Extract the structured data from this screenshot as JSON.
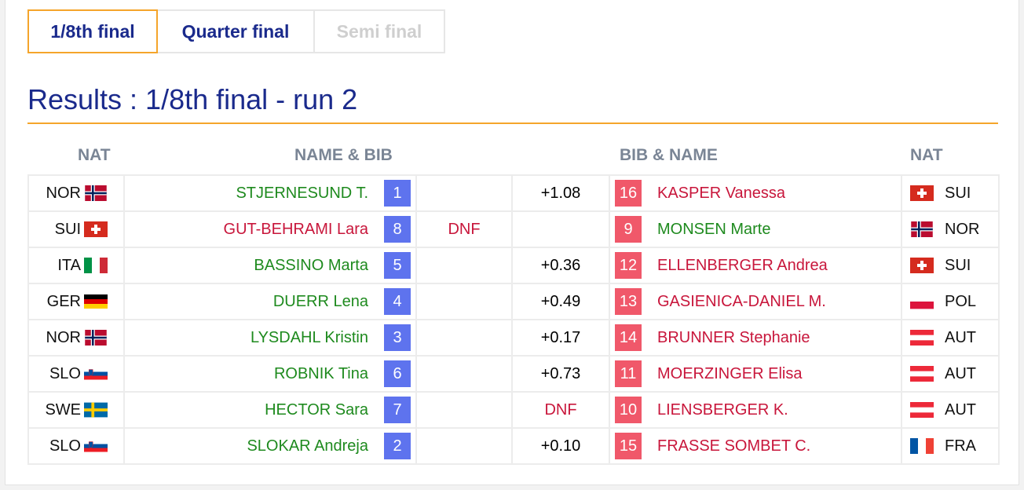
{
  "tabs": [
    {
      "label": "1/8th final",
      "state": "active"
    },
    {
      "label": "Quarter final",
      "state": "enabled"
    },
    {
      "label": "Semi final",
      "state": "disabled"
    }
  ],
  "title": "Results : 1/8th final - run 2",
  "headers": {
    "nat_left": "NAT",
    "name_bib": "NAME & BIB",
    "bib_name": "BIB & NAME",
    "nat_right": "NAT"
  },
  "colors": {
    "accent": "#f5a52b",
    "title": "#1a2a8c",
    "bib_left": "#5e73ee",
    "bib_right": "#f0586a",
    "winner": "#1e8a1e",
    "loser": "#c8163b"
  },
  "rows": [
    {
      "left": {
        "nat": "NOR",
        "flag": "flag-nor-icon",
        "name": "STJERNESUND T.",
        "bib": "1",
        "status": "win",
        "result": ""
      },
      "right": {
        "result": "+1.08",
        "bib": "16",
        "name": "KASPER Vanessa",
        "flag": "flag-sui-icon",
        "nat": "SUI",
        "status": "lose"
      }
    },
    {
      "left": {
        "nat": "SUI",
        "flag": "flag-sui-icon",
        "name": "GUT-BEHRAMI Lara",
        "bib": "8",
        "status": "lose",
        "result": "DNF"
      },
      "right": {
        "result": "",
        "bib": "9",
        "name": "MONSEN Marte",
        "flag": "flag-nor-icon",
        "nat": "NOR",
        "status": "win"
      }
    },
    {
      "left": {
        "nat": "ITA",
        "flag": "flag-ita-icon",
        "name": "BASSINO Marta",
        "bib": "5",
        "status": "win",
        "result": ""
      },
      "right": {
        "result": "+0.36",
        "bib": "12",
        "name": "ELLENBERGER Andrea",
        "flag": "flag-sui-icon",
        "nat": "SUI",
        "status": "lose"
      }
    },
    {
      "left": {
        "nat": "GER",
        "flag": "flag-ger-icon",
        "name": "DUERR Lena",
        "bib": "4",
        "status": "win",
        "result": ""
      },
      "right": {
        "result": "+0.49",
        "bib": "13",
        "name": "GASIENICA-DANIEL M.",
        "flag": "flag-pol-icon",
        "nat": "POL",
        "status": "lose"
      }
    },
    {
      "left": {
        "nat": "NOR",
        "flag": "flag-nor-icon",
        "name": "LYSDAHL Kristin",
        "bib": "3",
        "status": "win",
        "result": ""
      },
      "right": {
        "result": "+0.17",
        "bib": "14",
        "name": "BRUNNER Stephanie",
        "flag": "flag-aut-icon",
        "nat": "AUT",
        "status": "lose"
      }
    },
    {
      "left": {
        "nat": "SLO",
        "flag": "flag-slo-icon",
        "name": "ROBNIK Tina",
        "bib": "6",
        "status": "win",
        "result": ""
      },
      "right": {
        "result": "+0.73",
        "bib": "11",
        "name": "MOERZINGER Elisa",
        "flag": "flag-aut-icon",
        "nat": "AUT",
        "status": "lose"
      }
    },
    {
      "left": {
        "nat": "SWE",
        "flag": "flag-swe-icon",
        "name": "HECTOR Sara",
        "bib": "7",
        "status": "win",
        "result": ""
      },
      "right": {
        "result": "DNF",
        "bib": "10",
        "name": "LIENSBERGER K.",
        "flag": "flag-aut-icon",
        "nat": "AUT",
        "status": "lose"
      }
    },
    {
      "left": {
        "nat": "SLO",
        "flag": "flag-slo-icon",
        "name": "SLOKAR Andreja",
        "bib": "2",
        "status": "win",
        "result": ""
      },
      "right": {
        "result": "+0.10",
        "bib": "15",
        "name": "FRASSE SOMBET C.",
        "flag": "flag-fra-icon",
        "nat": "FRA",
        "status": "lose"
      }
    }
  ]
}
